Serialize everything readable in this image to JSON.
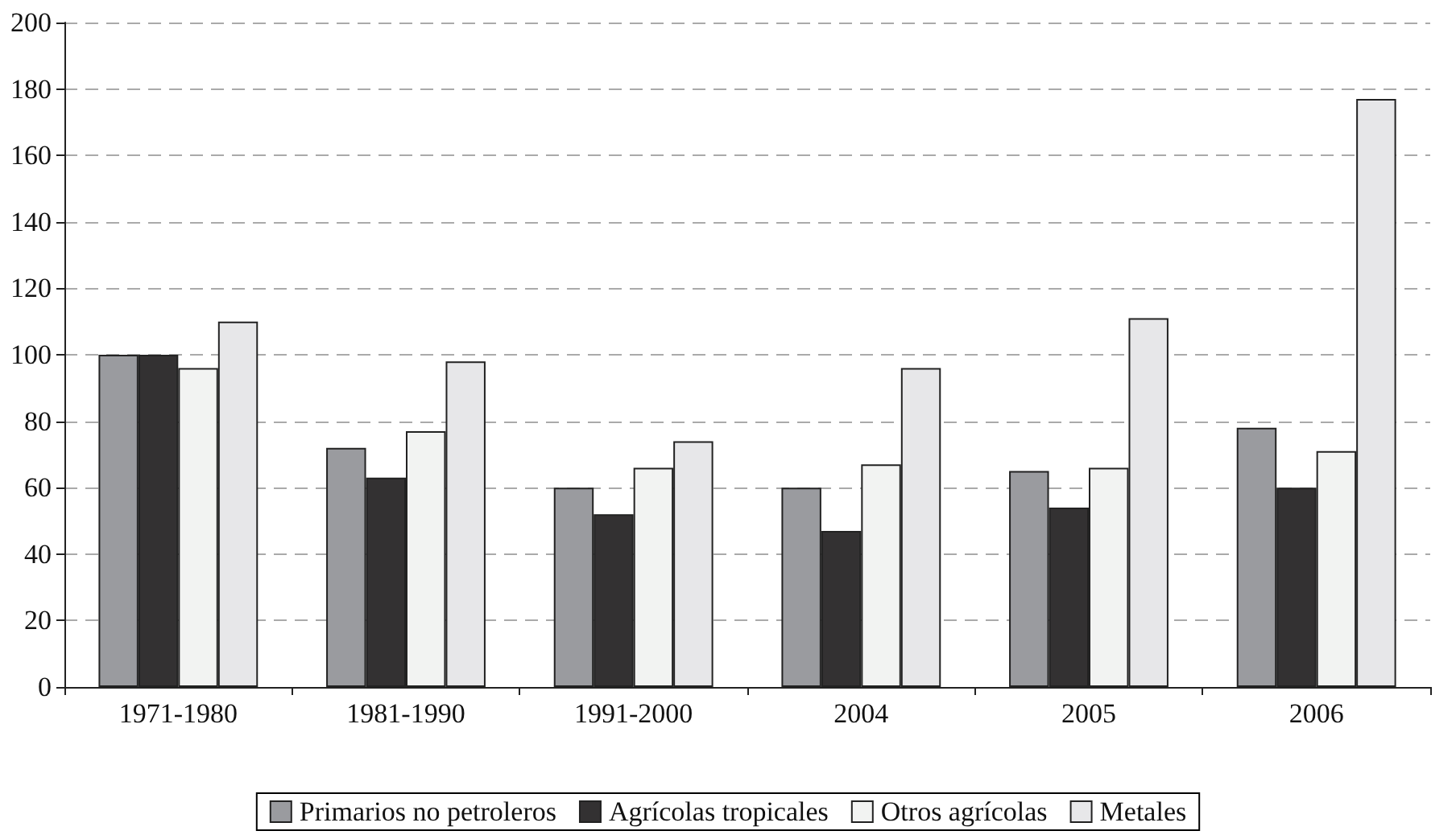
{
  "chart_data": {
    "type": "bar",
    "categories": [
      "1971-1980",
      "1981-1990",
      "1991-2000",
      "2004",
      "2005",
      "2006"
    ],
    "series": [
      {
        "name": "Primarios no petroleros",
        "color": "#9a9b9f",
        "values": [
          100,
          72,
          60,
          60,
          65,
          78
        ]
      },
      {
        "name": "Agrícolas tropicales",
        "color": "#333132",
        "values": [
          100,
          63,
          52,
          47,
          54,
          60
        ]
      },
      {
        "name": "Otros agrícolas",
        "color": "#f2f3f2",
        "values": [
          96,
          77,
          66,
          67,
          66,
          71
        ]
      },
      {
        "name": "Metales",
        "color": "#e7e7e9",
        "values": [
          110,
          98,
          74,
          96,
          111,
          177
        ]
      }
    ],
    "ylim": [
      0,
      200
    ],
    "yticks": [
      0,
      20,
      40,
      60,
      80,
      100,
      120,
      140,
      160,
      180,
      200
    ],
    "grid": "y",
    "legend": "bottom"
  }
}
